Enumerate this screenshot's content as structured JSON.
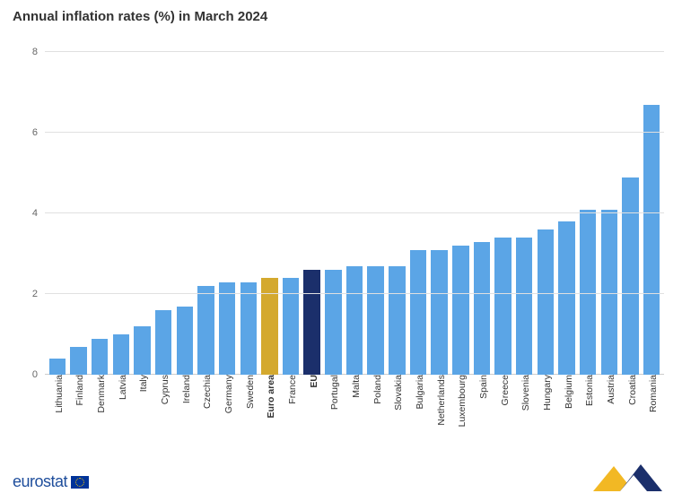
{
  "chart": {
    "type": "bar",
    "title": "Annual inflation rates (%) in March 2024",
    "title_fontsize": 15,
    "title_color": "#333333",
    "background_color": "#ffffff",
    "grid_color": "#e0e0e0",
    "ylim": [
      0,
      8
    ],
    "ytick_step": 2,
    "yticks": [
      0,
      2,
      4,
      6,
      8
    ],
    "label_fontsize": 11,
    "xlabel_fontsize": 10.5,
    "bar_width": 0.78,
    "colors": {
      "default": "#5ba5e6",
      "euro_area": "#d4a92e",
      "eu": "#1b2f6b"
    },
    "series": [
      {
        "label": "Lithuania",
        "value": 0.4,
        "color": "#5ba5e6",
        "bold": false
      },
      {
        "label": "Finland",
        "value": 0.7,
        "color": "#5ba5e6",
        "bold": false
      },
      {
        "label": "Denmark",
        "value": 0.9,
        "color": "#5ba5e6",
        "bold": false
      },
      {
        "label": "Latvia",
        "value": 1.0,
        "color": "#5ba5e6",
        "bold": false
      },
      {
        "label": "Italy",
        "value": 1.2,
        "color": "#5ba5e6",
        "bold": false
      },
      {
        "label": "Cyprus",
        "value": 1.6,
        "color": "#5ba5e6",
        "bold": false
      },
      {
        "label": "Ireland",
        "value": 1.7,
        "color": "#5ba5e6",
        "bold": false
      },
      {
        "label": "Czechia",
        "value": 2.2,
        "color": "#5ba5e6",
        "bold": false
      },
      {
        "label": "Germany",
        "value": 2.3,
        "color": "#5ba5e6",
        "bold": false
      },
      {
        "label": "Sweden",
        "value": 2.3,
        "color": "#5ba5e6",
        "bold": false
      },
      {
        "label": "Euro area",
        "value": 2.4,
        "color": "#d4a92e",
        "bold": true
      },
      {
        "label": "France",
        "value": 2.4,
        "color": "#5ba5e6",
        "bold": false
      },
      {
        "label": "EU",
        "value": 2.6,
        "color": "#1b2f6b",
        "bold": true
      },
      {
        "label": "Portugal",
        "value": 2.6,
        "color": "#5ba5e6",
        "bold": false
      },
      {
        "label": "Malta",
        "value": 2.7,
        "color": "#5ba5e6",
        "bold": false
      },
      {
        "label": "Poland",
        "value": 2.7,
        "color": "#5ba5e6",
        "bold": false
      },
      {
        "label": "Slovakia",
        "value": 2.7,
        "color": "#5ba5e6",
        "bold": false
      },
      {
        "label": "Bulgaria",
        "value": 3.1,
        "color": "#5ba5e6",
        "bold": false
      },
      {
        "label": "Netherlands",
        "value": 3.1,
        "color": "#5ba5e6",
        "bold": false
      },
      {
        "label": "Luxembourg",
        "value": 3.2,
        "color": "#5ba5e6",
        "bold": false
      },
      {
        "label": "Spain",
        "value": 3.3,
        "color": "#5ba5e6",
        "bold": false
      },
      {
        "label": "Greece",
        "value": 3.4,
        "color": "#5ba5e6",
        "bold": false
      },
      {
        "label": "Slovenia",
        "value": 3.4,
        "color": "#5ba5e6",
        "bold": false
      },
      {
        "label": "Hungary",
        "value": 3.6,
        "color": "#5ba5e6",
        "bold": false
      },
      {
        "label": "Belgium",
        "value": 3.8,
        "color": "#5ba5e6",
        "bold": false
      },
      {
        "label": "Estonia",
        "value": 4.1,
        "color": "#5ba5e6",
        "bold": false
      },
      {
        "label": "Austria",
        "value": 4.1,
        "color": "#5ba5e6",
        "bold": false
      },
      {
        "label": "Croatia",
        "value": 4.9,
        "color": "#5ba5e6",
        "bold": false
      },
      {
        "label": "Romania",
        "value": 6.7,
        "color": "#5ba5e6",
        "bold": false
      }
    ]
  },
  "footer": {
    "brand": "eurostat",
    "brand_color": "#1f4e9c",
    "corner_logo_colors": {
      "yellow": "#f2b824",
      "navy": "#1b2f6b",
      "white": "#ffffff"
    }
  }
}
